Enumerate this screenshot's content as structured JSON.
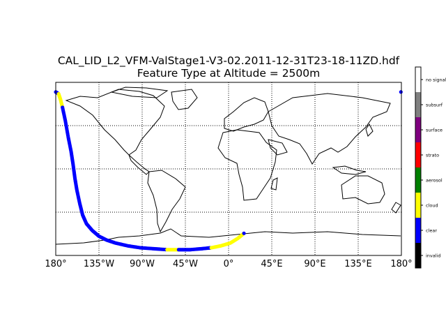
{
  "title_line1": "CAL_LID_L2_VFM-ValStage1-V3-02.2011-12-31T23-18-11ZD.hdf",
  "title_line2": "Feature Type at Altitude = 2500m",
  "map": {
    "projection": "equirectangular",
    "lon_range": [
      -180,
      180
    ],
    "lat_range": [
      -90,
      90
    ],
    "graticule": "dotted",
    "lon_tick_labels": [
      "180°",
      "135°W",
      "90°W",
      "45°W",
      "0°",
      "45°E",
      "90°E",
      "135°E",
      "180°"
    ]
  },
  "colorbar": {
    "entries": [
      {
        "label": "invalid",
        "color": "#000000"
      },
      {
        "label": "clear",
        "color": "#0000ff"
      },
      {
        "label": "cloud",
        "color": "#ffff00"
      },
      {
        "label": "aerosol",
        "color": "#008000"
      },
      {
        "label": "strato",
        "color": "#ff0000"
      },
      {
        "label": "surface",
        "color": "#800080"
      },
      {
        "label": "subsurf",
        "color": "#808080"
      },
      {
        "label": "no signal",
        "color": "#ffffff"
      }
    ]
  },
  "track_colors": {
    "clear": "#0000ff",
    "cloud": "#ffff00"
  },
  "track": [
    [
      -180,
      80
    ],
    [
      -177,
      78,
      "cloud"
    ],
    [
      -175,
      72,
      "cloud"
    ],
    [
      -173,
      64
    ],
    [
      -170,
      50
    ],
    [
      -167,
      33
    ],
    [
      -164,
      18
    ],
    [
      -162,
      5
    ],
    [
      -160,
      -10
    ],
    [
      -158,
      -22
    ],
    [
      -155,
      -36
    ],
    [
      -152,
      -48
    ],
    [
      -148,
      -57
    ],
    [
      -142,
      -64
    ],
    [
      -135,
      -70
    ],
    [
      -127,
      -74
    ],
    [
      -118,
      -77
    ],
    [
      -105,
      -80
    ],
    [
      -92,
      -82
    ],
    [
      -78,
      -83
    ],
    [
      -64,
      -84,
      "cloud"
    ],
    [
      -52,
      -84
    ],
    [
      -40,
      -84
    ],
    [
      -28,
      -83
    ],
    [
      -18,
      -82,
      "cloud"
    ],
    [
      -8,
      -80,
      "cloud"
    ],
    [
      2,
      -77,
      "cloud"
    ],
    [
      10,
      -72,
      "cloud"
    ],
    [
      16,
      -67
    ],
    [
      180,
      80
    ]
  ]
}
